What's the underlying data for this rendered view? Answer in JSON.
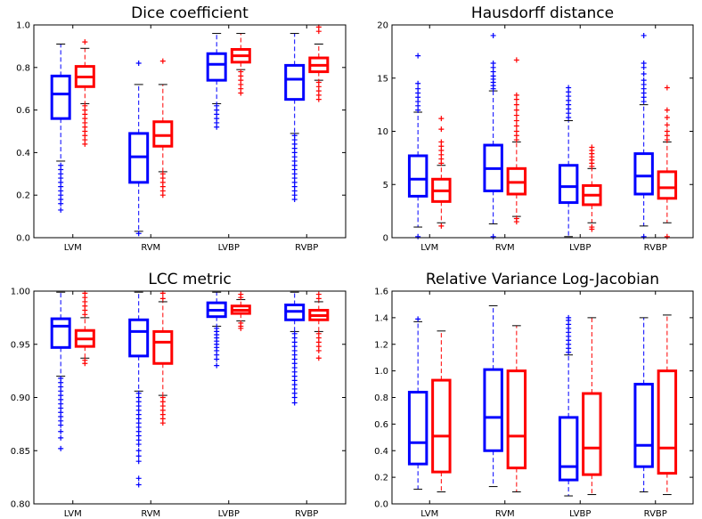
{
  "chart_data": [
    {
      "type": "boxplot",
      "title": "Dice coefficient",
      "categories": [
        "LVM",
        "RVM",
        "LVBP",
        "RVBP"
      ],
      "ylim": [
        0.0,
        1.0
      ],
      "yticks": [
        0.0,
        0.2,
        0.4,
        0.6,
        0.8,
        1.0
      ],
      "ytick_labels": [
        "0.0",
        "0.2",
        "0.4",
        "0.6",
        "0.8",
        "1.0"
      ],
      "grid": false,
      "series": [
        {
          "color": "#0000ff",
          "boxes": [
            {
              "q1": 0.56,
              "median": 0.675,
              "q3": 0.76,
              "whisker_low": 0.36,
              "whisker_high": 0.91,
              "fliers": [
                0.34,
                0.32,
                0.3,
                0.28,
                0.26,
                0.24,
                0.22,
                0.2,
                0.18,
                0.16,
                0.13
              ]
            },
            {
              "q1": 0.26,
              "median": 0.38,
              "q3": 0.49,
              "whisker_low": 0.03,
              "whisker_high": 0.72,
              "fliers": [
                0.82,
                0.02
              ]
            },
            {
              "q1": 0.74,
              "median": 0.815,
              "q3": 0.865,
              "whisker_low": 0.63,
              "whisker_high": 0.96,
              "fliers": [
                0.62,
                0.6,
                0.58,
                0.56,
                0.54,
                0.52
              ]
            },
            {
              "q1": 0.65,
              "median": 0.745,
              "q3": 0.81,
              "whisker_low": 0.49,
              "whisker_high": 0.96,
              "fliers": [
                0.48,
                0.46,
                0.44,
                0.42,
                0.4,
                0.38,
                0.36,
                0.34,
                0.32,
                0.3,
                0.28,
                0.26,
                0.24,
                0.22,
                0.2,
                0.18
              ]
            }
          ]
        },
        {
          "color": "#ff0000",
          "boxes": [
            {
              "q1": 0.71,
              "median": 0.755,
              "q3": 0.805,
              "whisker_low": 0.63,
              "whisker_high": 0.89,
              "fliers": [
                0.92,
                0.62,
                0.6,
                0.58,
                0.56,
                0.54,
                0.52,
                0.5,
                0.48,
                0.46,
                0.44
              ]
            },
            {
              "q1": 0.43,
              "median": 0.48,
              "q3": 0.545,
              "whisker_low": 0.31,
              "whisker_high": 0.72,
              "fliers": [
                0.83,
                0.3,
                0.28,
                0.26,
                0.24,
                0.22,
                0.2
              ]
            },
            {
              "q1": 0.825,
              "median": 0.855,
              "q3": 0.885,
              "whisker_low": 0.79,
              "whisker_high": 0.96,
              "fliers": [
                0.78,
                0.76,
                0.74,
                0.72,
                0.7,
                0.68
              ]
            },
            {
              "q1": 0.78,
              "median": 0.81,
              "q3": 0.845,
              "whisker_low": 0.74,
              "whisker_high": 0.91,
              "fliers": [
                0.99,
                0.97,
                0.73,
                0.71,
                0.69,
                0.67,
                0.65
              ]
            }
          ]
        }
      ]
    },
    {
      "type": "boxplot",
      "title": "Hausdorff distance",
      "categories": [
        "LVM",
        "RVM",
        "LVBP",
        "RVBP"
      ],
      "ylim": [
        0,
        20
      ],
      "yticks": [
        0,
        5,
        10,
        15,
        20
      ],
      "ytick_labels": [
        "0",
        "5",
        "10",
        "15",
        "20"
      ],
      "grid": false,
      "series": [
        {
          "color": "#0000ff",
          "boxes": [
            {
              "q1": 3.9,
              "median": 5.5,
              "q3": 7.7,
              "whisker_low": 1.0,
              "whisker_high": 11.8,
              "fliers": [
                12.0,
                12.4,
                12.8,
                13.2,
                13.6,
                14.0,
                14.5,
                17.1,
                0.1
              ]
            },
            {
              "q1": 4.4,
              "median": 6.5,
              "q3": 8.7,
              "whisker_low": 1.3,
              "whisker_high": 13.8,
              "fliers": [
                14.0,
                14.3,
                14.6,
                14.9,
                15.2,
                15.6,
                16.0,
                16.4,
                19.0,
                0.1
              ]
            },
            {
              "q1": 3.3,
              "median": 4.8,
              "q3": 6.8,
              "whisker_low": 0.1,
              "whisker_high": 11.0,
              "fliers": [
                11.3,
                11.7,
                12.1,
                12.5,
                12.9,
                13.3,
                13.7,
                14.1
              ]
            },
            {
              "q1": 4.1,
              "median": 5.8,
              "q3": 7.9,
              "whisker_low": 1.1,
              "whisker_high": 12.5,
              "fliers": [
                12.8,
                13.2,
                13.6,
                14.0,
                14.4,
                14.8,
                15.4,
                16.0,
                16.4,
                19.0,
                0.1
              ]
            }
          ]
        },
        {
          "color": "#ff0000",
          "boxes": [
            {
              "q1": 3.4,
              "median": 4.4,
              "q3": 5.5,
              "whisker_low": 1.4,
              "whisker_high": 6.8,
              "fliers": [
                7.0,
                7.4,
                7.8,
                8.2,
                8.6,
                9.0,
                10.2,
                11.2,
                1.1
              ]
            },
            {
              "q1": 4.1,
              "median": 5.2,
              "q3": 6.5,
              "whisker_low": 2.0,
              "whisker_high": 9.0,
              "fliers": [
                9.2,
                9.6,
                10.0,
                10.5,
                11.0,
                11.5,
                12.0,
                12.5,
                13.0,
                13.4,
                16.7,
                1.8,
                1.5
              ]
            },
            {
              "q1": 3.1,
              "median": 4.0,
              "q3": 4.9,
              "whisker_low": 1.4,
              "whisker_high": 6.5,
              "fliers": [
                6.7,
                7.0,
                7.3,
                7.6,
                7.9,
                8.2,
                8.5,
                1.0,
                0.8
              ]
            },
            {
              "q1": 3.7,
              "median": 4.7,
              "q3": 6.2,
              "whisker_low": 1.4,
              "whisker_high": 9.0,
              "fliers": [
                9.2,
                9.6,
                10.0,
                10.6,
                11.3,
                12.0,
                14.1,
                0.1
              ]
            }
          ]
        }
      ]
    },
    {
      "type": "boxplot",
      "title": "LCC metric",
      "categories": [
        "LVM",
        "RVM",
        "LVBP",
        "RVBP"
      ],
      "ylim": [
        0.8,
        1.0
      ],
      "yticks": [
        0.8,
        0.85,
        0.9,
        0.95,
        1.0
      ],
      "ytick_labels": [
        "0.80",
        "0.85",
        "0.90",
        "0.95",
        "1.00"
      ],
      "grid": false,
      "series": [
        {
          "color": "#0000ff",
          "boxes": [
            {
              "q1": 0.947,
              "median": 0.967,
              "q3": 0.974,
              "whisker_low": 0.92,
              "whisker_high": 0.999,
              "fliers": [
                0.918,
                0.914,
                0.91,
                0.906,
                0.902,
                0.898,
                0.894,
                0.89,
                0.886,
                0.882,
                0.878,
                0.874,
                0.868,
                0.862,
                0.852
              ]
            },
            {
              "q1": 0.939,
              "median": 0.962,
              "q3": 0.973,
              "whisker_low": 0.906,
              "whisker_high": 0.999,
              "fliers": [
                0.904,
                0.9,
                0.896,
                0.892,
                0.888,
                0.884,
                0.88,
                0.876,
                0.872,
                0.868,
                0.864,
                0.86,
                0.856,
                0.85,
                0.845,
                0.84,
                0.824,
                0.818
              ]
            },
            {
              "q1": 0.976,
              "median": 0.982,
              "q3": 0.989,
              "whisker_low": 0.967,
              "whisker_high": 0.999,
              "fliers": [
                0.965,
                0.962,
                0.959,
                0.956,
                0.953,
                0.95,
                0.947,
                0.944,
                0.94,
                0.936,
                0.93
              ]
            },
            {
              "q1": 0.973,
              "median": 0.981,
              "q3": 0.987,
              "whisker_low": 0.962,
              "whisker_high": 0.999,
              "fliers": [
                0.96,
                0.956,
                0.952,
                0.948,
                0.944,
                0.94,
                0.936,
                0.932,
                0.928,
                0.924,
                0.92,
                0.916,
                0.912,
                0.908,
                0.904,
                0.9,
                0.895
              ]
            }
          ]
        },
        {
          "color": "#ff0000",
          "boxes": [
            {
              "q1": 0.948,
              "median": 0.955,
              "q3": 0.963,
              "whisker_low": 0.937,
              "whisker_high": 0.975,
              "fliers": [
                0.978,
                0.982,
                0.986,
                0.99,
                0.994,
                0.998,
                0.935,
                0.932
              ]
            },
            {
              "q1": 0.932,
              "median": 0.952,
              "q3": 0.962,
              "whisker_low": 0.902,
              "whisker_high": 0.99,
              "fliers": [
                0.993,
                0.998,
                0.9,
                0.896,
                0.892,
                0.888,
                0.884,
                0.88,
                0.876
              ]
            },
            {
              "q1": 0.979,
              "median": 0.982,
              "q3": 0.986,
              "whisker_low": 0.972,
              "whisker_high": 0.992,
              "fliers": [
                0.994,
                0.997,
                0.97,
                0.967,
                0.965
              ]
            },
            {
              "q1": 0.973,
              "median": 0.977,
              "q3": 0.982,
              "whisker_low": 0.962,
              "whisker_high": 0.99,
              "fliers": [
                0.993,
                0.997,
                0.96,
                0.956,
                0.952,
                0.948,
                0.944,
                0.937
              ]
            }
          ]
        }
      ]
    },
    {
      "type": "boxplot",
      "title": "Relative Variance Log-Jacobian",
      "categories": [
        "LVM",
        "RVM",
        "LVBP",
        "RVBP"
      ],
      "ylim": [
        0.0,
        1.6
      ],
      "yticks": [
        0.0,
        0.2,
        0.4,
        0.6,
        0.8,
        1.0,
        1.2,
        1.4,
        1.6
      ],
      "ytick_labels": [
        "0.0",
        "0.2",
        "0.4",
        "0.6",
        "0.8",
        "1.0",
        "1.2",
        "1.4",
        "1.6"
      ],
      "grid": false,
      "series": [
        {
          "color": "#0000ff",
          "boxes": [
            {
              "q1": 0.3,
              "median": 0.46,
              "q3": 0.84,
              "whisker_low": 0.11,
              "whisker_high": 1.37,
              "fliers": [
                1.39
              ]
            },
            {
              "q1": 0.4,
              "median": 0.65,
              "q3": 1.01,
              "whisker_low": 0.13,
              "whisker_high": 1.49,
              "fliers": []
            },
            {
              "q1": 0.18,
              "median": 0.28,
              "q3": 0.65,
              "whisker_low": 0.06,
              "whisker_high": 1.12,
              "fliers": [
                1.14,
                1.17,
                1.2,
                1.23,
                1.26,
                1.29,
                1.32,
                1.35,
                1.38,
                1.4
              ]
            },
            {
              "q1": 0.28,
              "median": 0.44,
              "q3": 0.9,
              "whisker_low": 0.09,
              "whisker_high": 1.4,
              "fliers": []
            }
          ]
        },
        {
          "color": "#ff0000",
          "boxes": [
            {
              "q1": 0.24,
              "median": 0.51,
              "q3": 0.93,
              "whisker_low": 0.09,
              "whisker_high": 1.3,
              "fliers": []
            },
            {
              "q1": 0.27,
              "median": 0.51,
              "q3": 1.0,
              "whisker_low": 0.09,
              "whisker_high": 1.34,
              "fliers": []
            },
            {
              "q1": 0.22,
              "median": 0.42,
              "q3": 0.83,
              "whisker_low": 0.07,
              "whisker_high": 1.4,
              "fliers": []
            },
            {
              "q1": 0.23,
              "median": 0.42,
              "q3": 1.0,
              "whisker_low": 0.07,
              "whisker_high": 1.42,
              "fliers": []
            }
          ]
        }
      ]
    }
  ]
}
